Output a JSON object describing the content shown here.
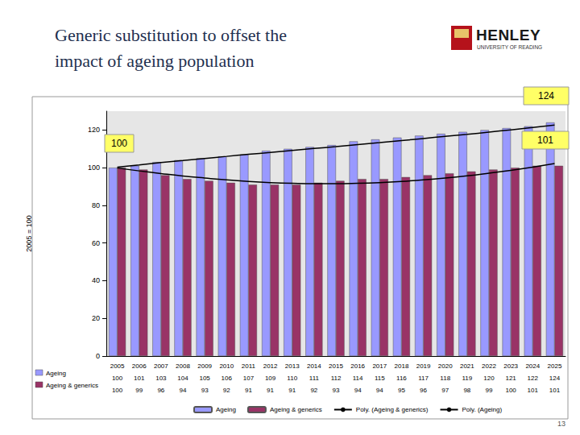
{
  "slide": {
    "title": "Generic substitution to offset the impact of ageing population",
    "logo_name": "HENLEY",
    "logo_sub": "UNIVERSITY OF READING",
    "page": "13"
  },
  "chart_data": {
    "type": "bar",
    "y_label": "2005 = 100",
    "categories": [
      "2005",
      "2006",
      "2007",
      "2008",
      "2009",
      "2010",
      "2011",
      "2012",
      "2013",
      "2014",
      "2015",
      "2016",
      "2017",
      "2018",
      "2019",
      "2020",
      "2021",
      "2022",
      "2023",
      "2024",
      "2025"
    ],
    "series": [
      {
        "name": "Ageing",
        "type": "bar",
        "color": "#9999ff",
        "values": [
          100,
          101,
          103,
          104,
          105,
          106,
          107,
          109,
          110,
          111,
          112,
          114,
          115,
          116,
          117,
          118,
          119,
          120,
          121,
          122,
          124
        ]
      },
      {
        "name": "Ageing & generics",
        "type": "bar",
        "color": "#993366",
        "values": [
          100,
          99,
          96,
          94,
          93,
          92,
          91,
          91,
          91,
          92,
          93,
          94,
          94,
          95,
          96,
          97,
          98,
          99,
          100,
          101,
          101
        ]
      },
      {
        "name": "Poly. (Ageing & generics)",
        "type": "line",
        "color": "#000000",
        "line_style": "solid",
        "values": [
          99.8,
          98.3,
          96.9,
          95.6,
          94.5,
          93.5,
          92.7,
          92.1,
          91.7,
          91.5,
          91.5,
          91.7,
          92.1,
          92.7,
          93.5,
          94.5,
          95.7,
          97.1,
          98.6,
          100.3,
          102.2
        ]
      },
      {
        "name": "Poly. (Ageing)",
        "type": "line",
        "color": "#000000",
        "line_style": "solid",
        "values": [
          100.3,
          101.5,
          102.7,
          103.8,
          104.9,
          106,
          107.1,
          108.1,
          109.2,
          110.2,
          111.2,
          112.3,
          113.3,
          114.4,
          115.5,
          116.6,
          117.7,
          118.9,
          120.1,
          121.3,
          122.6
        ]
      }
    ],
    "ylim": [
      0,
      130
    ],
    "yticks": [
      0,
      20,
      40,
      60,
      80,
      100,
      120
    ],
    "grid": false,
    "legend": "bottom",
    "annotations": [
      "124",
      "100",
      "101"
    ]
  }
}
